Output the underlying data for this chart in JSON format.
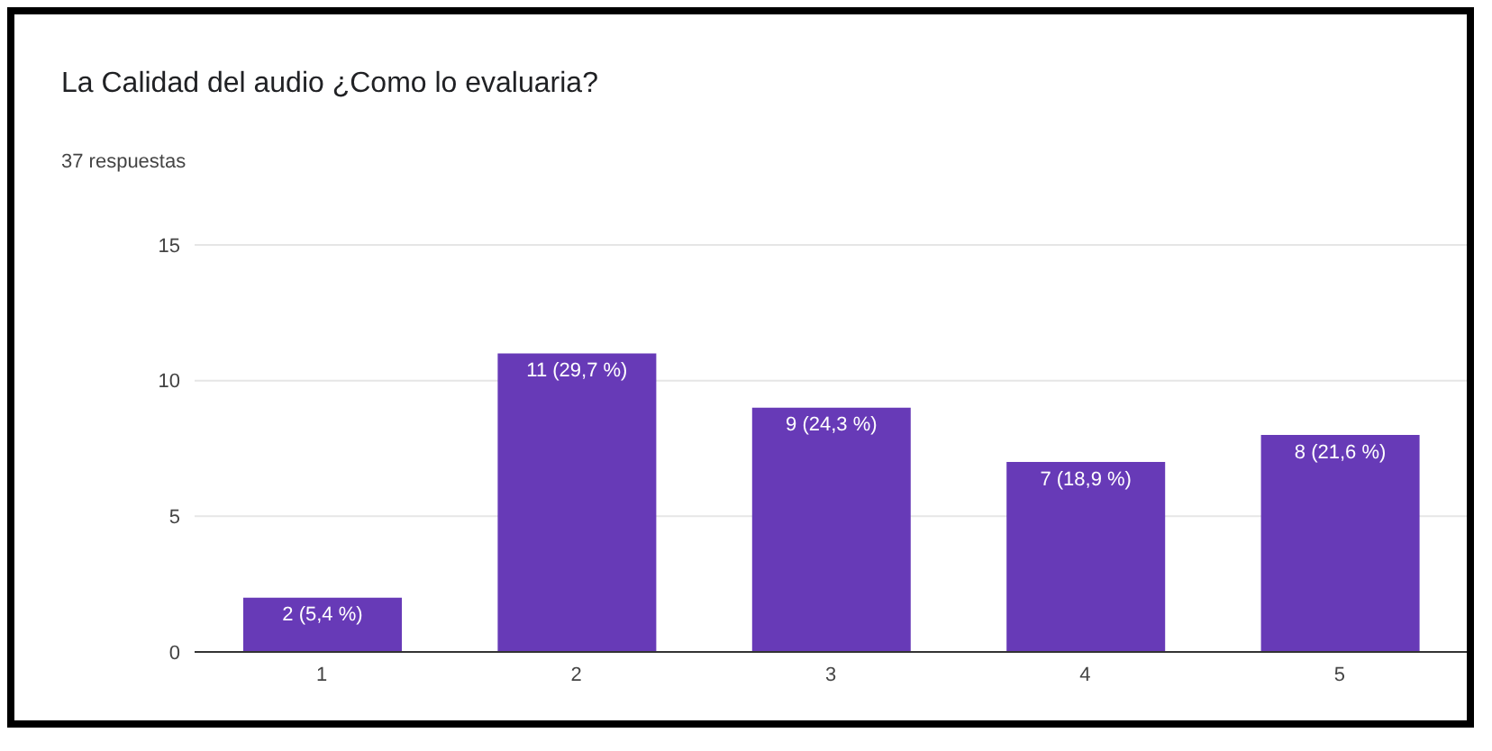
{
  "chart_data": {
    "type": "bar",
    "title": "La Calidad del audio ¿Como lo evaluaria?",
    "subtitle": "37 respuestas",
    "categories": [
      "1",
      "2",
      "3",
      "4",
      "5"
    ],
    "values": [
      2,
      11,
      9,
      7,
      8
    ],
    "value_labels": [
      "2 (5,4 %)",
      "11 (29,7 %)",
      "9 (24,3 %)",
      "7 (18,9 %)",
      "8 (21,6 %)"
    ],
    "color": "#673ab7",
    "ylim": [
      0,
      15
    ],
    "yticks": [
      0,
      5,
      10,
      15
    ],
    "grid": "y"
  }
}
